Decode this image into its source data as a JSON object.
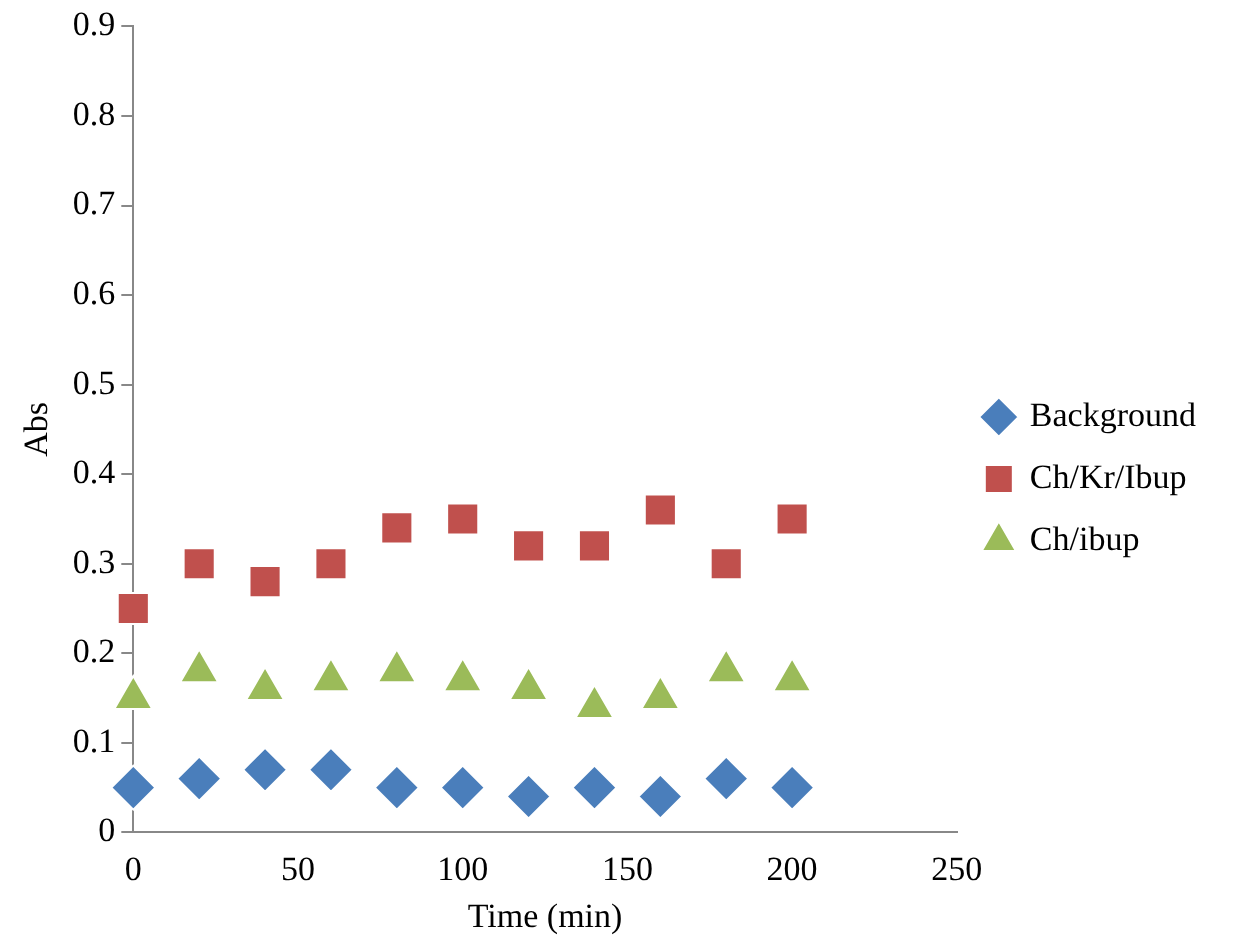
{
  "chart_data": {
    "type": "scatter",
    "xlabel": "Time (min)",
    "ylabel": "Abs",
    "x": [
      0,
      20,
      40,
      60,
      80,
      100,
      120,
      140,
      160,
      180,
      200
    ],
    "series": [
      {
        "name": "Background",
        "color": "#4a7ebb",
        "marker": "diamond",
        "values": [
          0.05,
          0.06,
          0.07,
          0.07,
          0.05,
          0.05,
          0.04,
          0.05,
          0.04,
          0.06,
          0.05
        ]
      },
      {
        "name": "Ch/Kr/Ibup",
        "color": "#c0504d",
        "marker": "square",
        "values": [
          0.25,
          0.3,
          0.28,
          0.3,
          0.34,
          0.35,
          0.32,
          0.32,
          0.36,
          0.3,
          0.35
        ]
      },
      {
        "name": "Ch/ibup",
        "color": "#9bbb59",
        "marker": "triangle",
        "values": [
          0.15,
          0.18,
          0.16,
          0.17,
          0.18,
          0.17,
          0.16,
          0.14,
          0.15,
          0.18,
          0.17
        ]
      }
    ],
    "xlim": [
      0,
      250
    ],
    "xticks": [
      0,
      50,
      100,
      150,
      200,
      250
    ],
    "ylim": [
      0,
      0.9
    ],
    "yticks": [
      0,
      0.1,
      0.2,
      0.3,
      0.4,
      0.5,
      0.6,
      0.7,
      0.8,
      0.9
    ],
    "grid": false,
    "legend": "right"
  }
}
